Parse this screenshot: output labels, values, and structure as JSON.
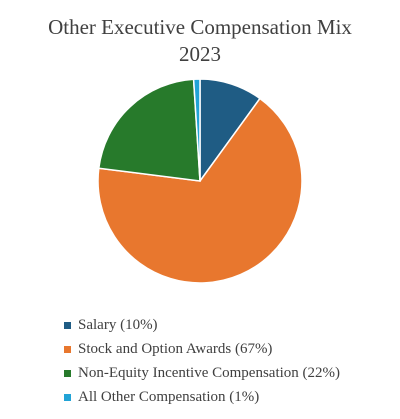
{
  "chart_data": {
    "type": "pie",
    "title_line1": "Other Executive Compensation Mix",
    "title_line2": "2023",
    "slices": [
      {
        "label": "Salary (10%)",
        "value": 10,
        "color": "#1f5c84"
      },
      {
        "label": "Stock and Option Awards (67%)",
        "value": 67,
        "color": "#e8772e"
      },
      {
        "label": "Non-Equity Incentive Compensation (22%)",
        "value": 22,
        "color": "#277a2b"
      },
      {
        "label": "All Other Compensation (1%)",
        "value": 1,
        "color": "#21a3d6"
      }
    ],
    "legend_position": "bottom-left"
  }
}
